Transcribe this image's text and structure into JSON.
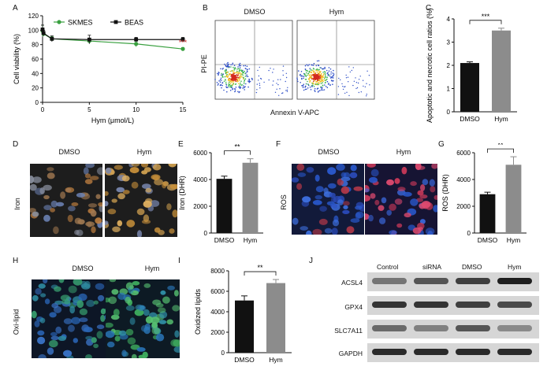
{
  "panels": {
    "A": {
      "letter": "A",
      "chart_data": {
        "type": "line",
        "xlabel": "Hym (μmol/L)",
        "ylabel": "Cell viability (%)",
        "x": [
          0,
          0.1,
          1,
          5,
          10,
          15
        ],
        "xticks": [
          "0",
          "5",
          "10",
          "15"
        ],
        "yticks": [
          "0",
          "20",
          "40",
          "60",
          "80",
          "100",
          "120"
        ],
        "ylim": [
          0,
          120
        ],
        "xlim": [
          0,
          15
        ],
        "series": [
          {
            "name": "SKMES",
            "color": "#3aa040",
            "marker": "circle",
            "values": [
              99,
              95,
              88,
              85,
              81,
              74
            ],
            "err": [
              8,
              3,
              3,
              3,
              4,
              2
            ]
          },
          {
            "name": "BEAS",
            "color": "#111111",
            "marker": "square",
            "values": [
              101,
              96,
              88,
              87,
              87,
              87
            ],
            "err": [
              6,
              4,
              4,
              6,
              3,
              3
            ]
          }
        ],
        "annotation": "***"
      }
    },
    "B": {
      "letter": "B",
      "titles": [
        "DMSO",
        "Hym"
      ],
      "ylabel": "PI-PE",
      "xlabel": "Annexin V-APC"
    },
    "C": {
      "letter": "C",
      "chart_data": {
        "type": "bar",
        "categories": [
          "DMSO",
          "Hym"
        ],
        "values": [
          2.1,
          3.5
        ],
        "err": [
          0.05,
          0.1
        ],
        "colors": [
          "#111111",
          "#8c8c8c"
        ],
        "ylabel": "Apoptotic and necrotic cell ratios (%)",
        "yticks": [
          "0",
          "1",
          "2",
          "3",
          "4"
        ],
        "ylim": [
          0,
          4
        ],
        "significance": "***"
      }
    },
    "D": {
      "letter": "D",
      "titles": [
        "DMSO",
        "Hym"
      ],
      "rowlabel": "Iron"
    },
    "E": {
      "letter": "E",
      "chart_data": {
        "type": "bar",
        "categories": [
          "DMSO",
          "Hym"
        ],
        "values": [
          4050,
          5250
        ],
        "err": [
          200,
          300
        ],
        "colors": [
          "#111111",
          "#8c8c8c"
        ],
        "ylabel": "Iron (DHR)",
        "yticks": [
          "0",
          "2000",
          "4000",
          "6000"
        ],
        "ylim": [
          0,
          6000
        ],
        "significance": "**"
      }
    },
    "F": {
      "letter": "F",
      "titles": [
        "DMSO",
        "Hym"
      ],
      "rowlabel": "ROS"
    },
    "G": {
      "letter": "G",
      "chart_data": {
        "type": "bar",
        "categories": [
          "DMSO",
          "Hym"
        ],
        "values": [
          2900,
          5100
        ],
        "err": [
          150,
          600
        ],
        "colors": [
          "#111111",
          "#8c8c8c"
        ],
        "ylabel": "ROS (DHR)",
        "yticks": [
          "0",
          "2000",
          "4000",
          "6000"
        ],
        "ylim": [
          0,
          6000
        ],
        "significance": "**"
      }
    },
    "H": {
      "letter": "H",
      "titles": [
        "DMSO",
        "Hym"
      ],
      "rowlabel": "Oxi-lipid"
    },
    "I": {
      "letter": "I",
      "chart_data": {
        "type": "bar",
        "categories": [
          "DMSO",
          "Hym"
        ],
        "values": [
          5100,
          6800
        ],
        "err": [
          450,
          350
        ],
        "colors": [
          "#111111",
          "#8c8c8c"
        ],
        "ylabel": "Oxidized lipids",
        "yticks": [
          "0",
          "2000",
          "4000",
          "6000",
          "8000"
        ],
        "ylim": [
          0,
          8000
        ],
        "significance": "**"
      }
    },
    "J": {
      "letter": "J",
      "columns": [
        "Control",
        "siRNA",
        "DMSO",
        "Hym"
      ],
      "rows": [
        "ACSL4",
        "GPX4",
        "SLC7A11",
        "GAPDH"
      ]
    }
  }
}
